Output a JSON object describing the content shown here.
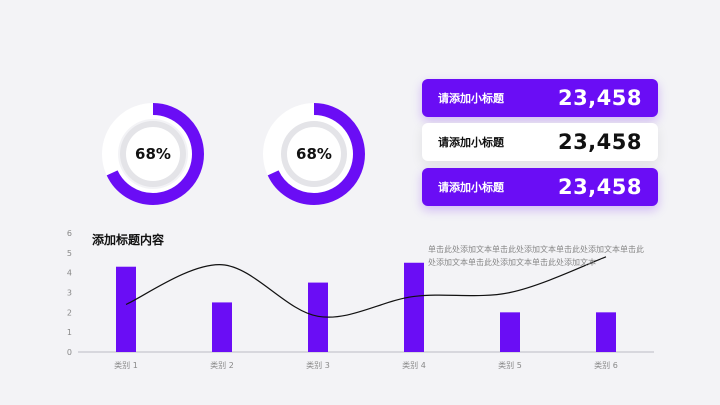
{
  "colors": {
    "accent": "#6a0df5",
    "track": "#e4e4e8",
    "ring": "#ffffff",
    "line": "#111111"
  },
  "donuts": [
    {
      "label": "68%",
      "value": 0.68
    },
    {
      "label": "68%",
      "value": 0.68
    }
  ],
  "stats": [
    {
      "label": "请添加小标题",
      "value": "23,458",
      "style": "purple"
    },
    {
      "label": "请添加小标题",
      "value": "23,458",
      "style": "white"
    },
    {
      "label": "请添加小标题",
      "value": "23,458",
      "style": "purple"
    }
  ],
  "chart_title": "添加标题内容",
  "chart_body": "单击此处添加文本单击此处添加文本单击此处添加文本单击此处添加文本单击此处添加文本单击此处添加文本",
  "chart_data": {
    "type": "bar",
    "categories": [
      "类别 1",
      "类别 2",
      "类别 3",
      "类别 4",
      "类别 5",
      "类别 6"
    ],
    "series": [
      {
        "type": "bar",
        "values": [
          4.3,
          2.5,
          3.5,
          4.5,
          2.0,
          2.0
        ]
      },
      {
        "type": "line",
        "smooth": true,
        "values": [
          2.4,
          4.4,
          1.8,
          2.8,
          3.0,
          4.8
        ]
      }
    ],
    "ylim": [
      0,
      6
    ],
    "yticks": [
      "0",
      "1",
      "2",
      "3",
      "4",
      "5",
      "6"
    ],
    "grid": false,
    "title": "",
    "xlabel": "",
    "ylabel": ""
  }
}
